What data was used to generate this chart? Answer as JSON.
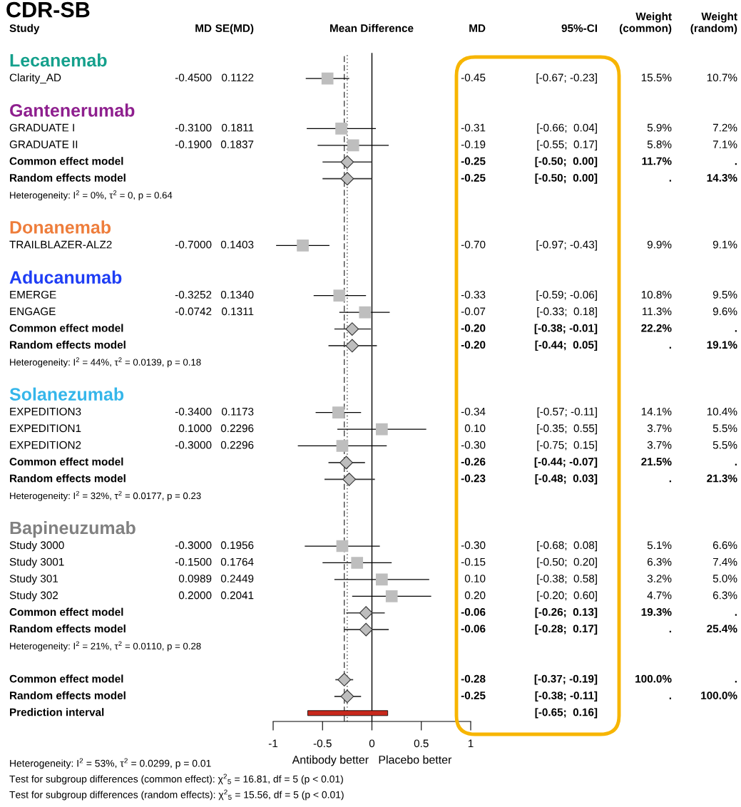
{
  "chart_data": [
    {
      "type": "scatter",
      "orientation": "horizontal",
      "subtitle": "Mean Difference",
      "ylabel": "Study",
      "xlabel": "Antibody better   Placebo better",
      "categories": [
        "Lecanemab",
        "Clarity_AD",
        null,
        "Gantenerumab",
        "GRADUATE I",
        "GRADUATE II",
        "Common effect model",
        "Random effects model",
        "Heterogeneity: I$^{2}$ = 0%, τ$^{2}$ = 0, p = 0.64",
        null,
        "Donanemab",
        "TRAILBLAZER-ALZ2",
        null,
        "Aducanumab",
        "EMERGE",
        "ENGAGE",
        "Common effect model",
        "Random effects model",
        "Heterogeneity: I$^{2}$ = 44%, τ$^{2}$ = 0.0139, p = 0.18",
        null,
        "Solanezumab",
        "EXPEDITION3",
        "EXPEDITION1",
        "EXPEDITION2",
        "Common effect model",
        "Random effects model",
        "Heterogeneity: I$^{2}$ = 32%, τ$^{2}$ = 0.0177, p = 0.23",
        null,
        "Bapineuzumab",
        "Study 3000",
        "Study 3001",
        "Study 301",
        "Study 302",
        "Common effect model",
        "Random effects model",
        "Heterogeneity: I$^{2}$ = 21%, τ$^{2}$ = 0.0110, p = 0.28",
        null,
        "Common effect model",
        "Random effects model",
        "Prediction interval"
      ],
      "colors": [
        "#14a08c",
        null,
        null,
        "#8e1f8e",
        null,
        null,
        null,
        null,
        null,
        null,
        "#ee7d3b",
        null,
        null,
        "#1e3df5",
        null,
        null,
        null,
        null,
        null,
        null,
        "#35b6ea",
        null,
        null,
        null,
        null,
        null,
        null,
        null,
        "#808080",
        null,
        null,
        null,
        null,
        null,
        null,
        null,
        null,
        null,
        null,
        null
      ],
      "xlim": [
        -1,
        1
      ],
      "xticks": [
        -1,
        -0.5,
        0,
        0.5,
        1
      ],
      "tick_labels": "x",
      "ref_lines": [
        {
          "axis": "x",
          "value": 0,
          "line_style": "solid",
          "color": "#000000"
        },
        {
          "axis": "x",
          "value": -0.28,
          "line_style": "dashed",
          "color": "#444444"
        },
        {
          "axis": "x",
          "value": -0.25,
          "line_style": "dotted",
          "color": "#444444"
        }
      ],
      "series": [
        {
          "type": "scatter",
          "marker": "square",
          "color": "#bebebe",
          "values": [
            null,
            -0.45,
            null,
            null,
            -0.31,
            -0.19,
            null,
            null,
            null,
            null,
            null,
            -0.7,
            null,
            null,
            -0.33,
            -0.07,
            null,
            null,
            null,
            null,
            null,
            -0.34,
            0.1,
            -0.3,
            null,
            null,
            null,
            null,
            null,
            -0.3,
            -0.15,
            0.1,
            0.2,
            null,
            null,
            null,
            null,
            null,
            null,
            null
          ],
          "errors": [
            null,
            [
              -0.67,
              -0.23
            ],
            null,
            null,
            [
              -0.66,
              0.04
            ],
            [
              -0.55,
              0.17
            ],
            null,
            null,
            null,
            null,
            null,
            [
              -0.97,
              -0.43
            ],
            null,
            null,
            [
              -0.59,
              -0.06
            ],
            [
              -0.33,
              0.18
            ],
            null,
            null,
            null,
            null,
            null,
            [
              -0.57,
              -0.11
            ],
            [
              -0.35,
              0.55
            ],
            [
              -0.75,
              0.15
            ],
            null,
            null,
            null,
            null,
            null,
            [
              -0.68,
              0.08
            ],
            [
              -0.5,
              0.2
            ],
            [
              -0.38,
              0.58
            ],
            [
              -0.2,
              0.6
            ],
            null,
            null,
            null,
            null,
            null,
            null,
            null
          ]
        },
        {
          "type": "scatter",
          "marker": "diamond",
          "color": "#bdbdbd",
          "values": [
            null,
            null,
            null,
            null,
            null,
            null,
            -0.25,
            null,
            null,
            null,
            null,
            null,
            null,
            null,
            null,
            null,
            -0.2,
            null,
            null,
            null,
            null,
            null,
            null,
            null,
            -0.26,
            null,
            null,
            null,
            null,
            null,
            null,
            null,
            null,
            -0.06,
            null,
            null,
            null,
            -0.28,
            null,
            null
          ],
          "errors": [
            null,
            null,
            null,
            null,
            null,
            null,
            [
              -0.5,
              0.0
            ],
            null,
            null,
            null,
            null,
            null,
            null,
            null,
            null,
            null,
            [
              -0.38,
              -0.01
            ],
            null,
            null,
            null,
            null,
            null,
            null,
            null,
            [
              -0.44,
              -0.07
            ],
            null,
            null,
            null,
            null,
            null,
            null,
            null,
            null,
            [
              -0.26,
              0.13
            ],
            null,
            null,
            null,
            [
              -0.37,
              -0.19
            ],
            null,
            null
          ]
        },
        {
          "type": "scatter",
          "marker": "diamond",
          "color": "#bdbdbd",
          "values": [
            null,
            null,
            null,
            null,
            null,
            null,
            null,
            -0.25,
            null,
            null,
            null,
            null,
            null,
            null,
            null,
            null,
            null,
            -0.2,
            null,
            null,
            null,
            null,
            null,
            null,
            null,
            -0.23,
            null,
            null,
            null,
            null,
            null,
            null,
            null,
            null,
            -0.06,
            null,
            null,
            null,
            -0.25,
            null
          ],
          "errors": [
            null,
            null,
            null,
            null,
            null,
            null,
            null,
            [
              -0.5,
              0.0
            ],
            null,
            null,
            null,
            null,
            null,
            null,
            null,
            null,
            null,
            [
              -0.44,
              0.05
            ],
            null,
            null,
            null,
            null,
            null,
            null,
            null,
            [
              -0.48,
              0.03
            ],
            null,
            null,
            null,
            null,
            null,
            null,
            null,
            null,
            [
              -0.28,
              0.17
            ],
            null,
            null,
            null,
            [
              -0.38,
              -0.11
            ],
            null
          ]
        },
        {
          "type": "bar",
          "color": "#c8281c",
          "values": [
            null,
            null,
            null,
            null,
            null,
            null,
            null,
            null,
            null,
            null,
            null,
            null,
            null,
            null,
            null,
            null,
            null,
            null,
            null,
            null,
            null,
            null,
            null,
            null,
            null,
            null,
            null,
            null,
            null,
            null,
            null,
            null,
            null,
            null,
            null,
            null,
            null,
            null,
            null,
            0.81
          ],
          "base": [
            null,
            null,
            null,
            null,
            null,
            null,
            null,
            null,
            null,
            null,
            null,
            null,
            null,
            null,
            null,
            null,
            null,
            null,
            null,
            null,
            null,
            null,
            null,
            null,
            null,
            null,
            null,
            null,
            null,
            null,
            null,
            null,
            null,
            null,
            null,
            null,
            null,
            null,
            null,
            -0.65
          ]
        }
      ],
      "annotations": [
        "CDR-SB",
        "Heterogeneity: I$^{2}$ = 53%, τ$^{2}$ = 0.0299, p = 0.01",
        "Test for subgroup differences (common effect): χ$^{2}$$_{5}$ = 16.81, df = 5 (p < 0.01)",
        "Test for subgroup differences (random effects): χ$^{2}$$_{5}$ = 15.56, df = 5 (p < 0.01)"
      ]
    },
    {
      "type": "other",
      "title": "MD",
      "annotations": [
        null,
        "-0.4500",
        null,
        null,
        "-0.3100",
        "-0.1900",
        null,
        null,
        null,
        null,
        null,
        "-0.7000",
        null,
        null,
        "-0.3252",
        "-0.0742",
        null,
        null,
        null,
        null,
        null,
        "-0.3400",
        "0.1000",
        "-0.3000",
        null,
        null,
        null,
        null,
        null,
        "-0.3000",
        "-0.1500",
        "0.0989",
        "0.2000",
        null,
        null,
        null,
        null,
        null,
        null,
        null
      ]
    },
    {
      "type": "other",
      "title": "SE(MD)",
      "annotations": [
        null,
        "0.1122",
        null,
        null,
        "0.1811",
        "0.1837",
        null,
        null,
        null,
        null,
        null,
        "0.1403",
        null,
        null,
        "0.1340",
        "0.1311",
        null,
        null,
        null,
        null,
        null,
        "0.1173",
        "0.2296",
        "0.2296",
        null,
        null,
        null,
        null,
        null,
        "0.1956",
        "0.1764",
        "0.2449",
        "0.2041",
        null,
        null,
        null,
        null,
        null,
        null,
        null
      ]
    },
    {
      "type": "other",
      "title": "MD",
      "annotations": [
        null,
        "-0.45",
        null,
        null,
        "-0.31",
        "-0.19",
        "-0.25",
        "-0.25",
        null,
        null,
        null,
        "-0.70",
        null,
        null,
        "-0.33",
        "-0.07",
        "-0.20",
        "-0.20",
        null,
        null,
        null,
        "-0.34",
        "0.10",
        "-0.30",
        "-0.26",
        "-0.23",
        null,
        null,
        null,
        "-0.30",
        "-0.15",
        "0.10",
        "0.20",
        "-0.06",
        "-0.06",
        null,
        null,
        "-0.28",
        "-0.25",
        null
      ]
    },
    {
      "type": "other",
      "title": "95%-CI",
      "annotations": [
        null,
        "[-0.67; -0.23]",
        null,
        null,
        "[-0.66;  0.04]",
        "[-0.55;  0.17]",
        "[-0.50;  0.00]",
        "[-0.50;  0.00]",
        null,
        null,
        null,
        "[-0.97; -0.43]",
        null,
        null,
        "[-0.59; -0.06]",
        "[-0.33;  0.18]",
        "[-0.38; -0.01]",
        "[-0.44;  0.05]",
        null,
        null,
        null,
        "[-0.57; -0.11]",
        "[-0.35;  0.55]",
        "[-0.75;  0.15]",
        "[-0.44; -0.07]",
        "[-0.48;  0.03]",
        null,
        null,
        null,
        "[-0.68;  0.08]",
        "[-0.50;  0.20]",
        "[-0.38;  0.58]",
        "[-0.20;  0.60]",
        "[-0.26;  0.13]",
        "[-0.28;  0.17]",
        null,
        null,
        "[-0.37; -0.19]",
        "[-0.38; -0.11]",
        "[-0.65;  0.16]"
      ]
    },
    {
      "type": "other",
      "title": "Weight\n(common)",
      "annotations": [
        null,
        "15.5%",
        null,
        null,
        "5.9%",
        "5.8%",
        "11.7%",
        ".",
        null,
        null,
        null,
        "9.9%",
        null,
        null,
        "10.8%",
        "11.3%",
        "22.2%",
        ".",
        null,
        null,
        null,
        "14.1%",
        "3.7%",
        "3.7%",
        "21.5%",
        ".",
        null,
        null,
        null,
        "5.1%",
        "6.3%",
        "3.2%",
        "4.7%",
        "19.3%",
        ".",
        null,
        null,
        "100.0%",
        ".",
        null
      ]
    },
    {
      "type": "other",
      "title": "Weight\n(random)",
      "annotations": [
        null,
        "10.7%",
        null,
        null,
        "7.2%",
        "7.1%",
        ".",
        "14.3%",
        null,
        null,
        null,
        "9.1%",
        null,
        null,
        "9.5%",
        "9.6%",
        ".",
        "19.1%",
        null,
        null,
        null,
        "10.4%",
        "5.5%",
        "5.5%",
        ".",
        "21.3%",
        null,
        null,
        null,
        "6.6%",
        "7.4%",
        "5.0%",
        "6.3%",
        ".",
        "25.4%",
        null,
        null,
        ".",
        "100.0%",
        null
      ]
    }
  ]
}
